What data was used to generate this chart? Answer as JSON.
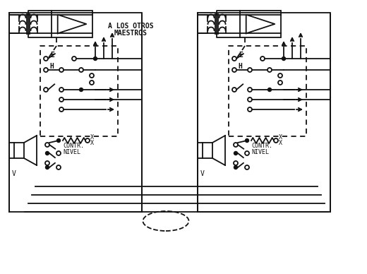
{
  "bg_color": "#ffffff",
  "line_color": "#111111",
  "label_A_LOS": "A LOS OTROS",
  "label_MAESTROS": "MAESTROS",
  "label_CONTR": "CONTR.",
  "label_NIVEL": "NIVEL",
  "label_E": "E",
  "label_H": "H",
  "label_X": "X"
}
